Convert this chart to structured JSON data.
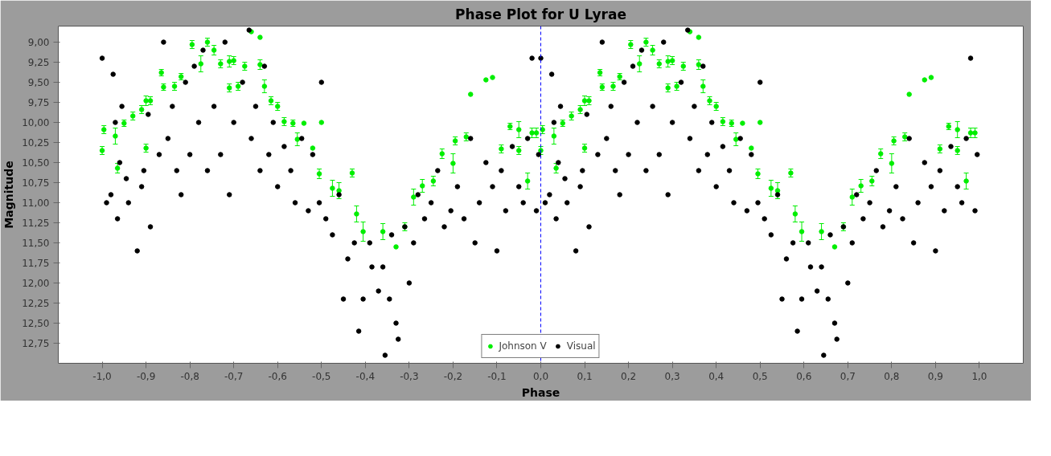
{
  "chart_data": {
    "type": "scatter",
    "title": "Phase Plot for U Lyrae",
    "xlabel": "Phase",
    "ylabel": "Magnitude",
    "xlim": [
      -1.1,
      1.1
    ],
    "ylim": [
      13.0,
      8.8
    ],
    "xticks": [
      {
        "value": -1.0,
        "label": "-1,0"
      },
      {
        "value": -0.9,
        "label": "-0,9"
      },
      {
        "value": -0.8,
        "label": "-0,8"
      },
      {
        "value": -0.7,
        "label": "-0,7"
      },
      {
        "value": -0.6,
        "label": "-0,6"
      },
      {
        "value": -0.5,
        "label": "-0,5"
      },
      {
        "value": -0.4,
        "label": "-0,4"
      },
      {
        "value": -0.3,
        "label": "-0,3"
      },
      {
        "value": -0.2,
        "label": "-0,2"
      },
      {
        "value": -0.1,
        "label": "-0,1"
      },
      {
        "value": 0.0,
        "label": "0,0"
      },
      {
        "value": 0.1,
        "label": "0,1"
      },
      {
        "value": 0.2,
        "label": "0,2"
      },
      {
        "value": 0.3,
        "label": "0,3"
      },
      {
        "value": 0.4,
        "label": "0,4"
      },
      {
        "value": 0.5,
        "label": "0,5"
      },
      {
        "value": 0.6,
        "label": "0,6"
      },
      {
        "value": 0.7,
        "label": "0,7"
      },
      {
        "value": 0.8,
        "label": "0,8"
      },
      {
        "value": 0.9,
        "label": "0,9"
      },
      {
        "value": 1.0,
        "label": "1,0"
      }
    ],
    "yticks": [
      {
        "value": 9.0,
        "label": "9,00"
      },
      {
        "value": 9.25,
        "label": "9,25"
      },
      {
        "value": 9.5,
        "label": "9,50"
      },
      {
        "value": 9.75,
        "label": "9,75"
      },
      {
        "value": 10.0,
        "label": "10,00"
      },
      {
        "value": 10.25,
        "label": "10,25"
      },
      {
        "value": 10.5,
        "label": "10,50"
      },
      {
        "value": 10.75,
        "label": "10,75"
      },
      {
        "value": 11.0,
        "label": "11,00"
      },
      {
        "value": 11.25,
        "label": "11,25"
      },
      {
        "value": 11.5,
        "label": "11,50"
      },
      {
        "value": 11.75,
        "label": "11,75"
      },
      {
        "value": 12.0,
        "label": "12,00"
      },
      {
        "value": 12.25,
        "label": "12,25"
      },
      {
        "value": 12.5,
        "label": "12,50"
      },
      {
        "value": 12.75,
        "label": "12,75"
      }
    ],
    "grid": false,
    "legend": "bottom",
    "marker": "circle",
    "ref_lines": [
      {
        "axis": "x",
        "value": 0.0,
        "color": "#0000ff",
        "line_style": "dashed"
      }
    ],
    "series": [
      {
        "name": "Johnson V",
        "color": "#00ee00",
        "x": [
          -0.996,
          -1.0,
          -0.97,
          -0.965,
          -0.95,
          -0.93,
          -0.91,
          -0.9,
          -0.9,
          -0.89,
          -0.865,
          -0.86,
          -0.835,
          -0.82,
          -0.795,
          -0.775,
          -0.76,
          -0.745,
          -0.73,
          -0.71,
          -0.71,
          -0.7,
          -0.69,
          -0.675,
          -0.66,
          -0.64,
          -0.64,
          -0.63,
          -0.615,
          -0.6,
          -0.585,
          -0.565,
          -0.555,
          -0.54,
          -0.52,
          -0.5,
          -0.505,
          -0.475,
          -0.46,
          -0.43,
          -0.42,
          -0.405,
          -0.36,
          -0.33,
          -0.31,
          -0.29,
          -0.27,
          -0.245,
          -0.225,
          -0.2,
          -0.195,
          -0.17,
          -0.16,
          -0.125,
          -0.11,
          -0.09,
          -0.07,
          -0.05,
          -0.05,
          -0.03,
          -0.02,
          -0.01,
          0.004,
          0.0,
          0.03,
          0.035,
          0.05,
          0.07,
          0.09,
          0.1,
          0.1,
          0.11,
          0.135,
          0.14,
          0.165,
          0.18,
          0.205,
          0.225,
          0.24,
          0.255,
          0.27,
          0.29,
          0.29,
          0.3,
          0.31,
          0.325,
          0.34,
          0.36,
          0.36,
          0.37,
          0.385,
          0.4,
          0.415,
          0.435,
          0.445,
          0.46,
          0.48,
          0.5,
          0.495,
          0.525,
          0.54,
          0.57,
          0.58,
          0.595,
          0.64,
          0.67,
          0.69,
          0.71,
          0.73,
          0.755,
          0.775,
          0.8,
          0.805,
          0.83,
          0.84,
          0.875,
          0.89,
          0.91,
          0.93,
          0.95,
          0.95,
          0.97,
          0.98,
          0.99
        ],
        "values": [
          10.09,
          10.35,
          10.17,
          10.57,
          10.01,
          9.92,
          9.84,
          9.73,
          10.32,
          9.73,
          9.38,
          9.56,
          9.55,
          9.43,
          9.03,
          9.27,
          9.0,
          9.1,
          9.27,
          9.24,
          9.57,
          9.23,
          9.55,
          9.3,
          8.87,
          8.94,
          9.28,
          9.55,
          9.73,
          9.8,
          9.99,
          10.01,
          10.21,
          10.01,
          10.32,
          10.0,
          10.64,
          10.82,
          10.85,
          10.63,
          11.14,
          11.36,
          11.36,
          11.55,
          11.3,
          10.93,
          10.79,
          10.73,
          10.39,
          10.51,
          10.23,
          10.18,
          9.65,
          9.47,
          9.44,
          10.33,
          10.05,
          10.35,
          10.09,
          10.73,
          10.13,
          10.13,
          10.09,
          10.35,
          10.17,
          10.57,
          10.01,
          9.92,
          9.84,
          9.73,
          10.32,
          9.73,
          9.38,
          9.56,
          9.55,
          9.43,
          9.03,
          9.27,
          9.0,
          9.1,
          9.27,
          9.24,
          9.57,
          9.23,
          9.55,
          9.3,
          8.87,
          8.94,
          9.28,
          9.55,
          9.73,
          9.8,
          9.99,
          10.01,
          10.21,
          10.01,
          10.32,
          10.0,
          10.64,
          10.82,
          10.85,
          10.63,
          11.14,
          11.36,
          11.36,
          11.55,
          11.3,
          10.93,
          10.79,
          10.73,
          10.39,
          10.51,
          10.23,
          10.18,
          9.65,
          9.47,
          9.44,
          10.33,
          10.05,
          10.35,
          10.09,
          10.73,
          10.13,
          10.13
        ],
        "errors": [
          0.05,
          0.05,
          0.1,
          0.06,
          0.04,
          0.05,
          0.05,
          0.06,
          0.05,
          0.05,
          0.04,
          0.04,
          0.05,
          0.04,
          0.05,
          0.1,
          0.05,
          0.06,
          0.05,
          0.07,
          0.05,
          0.05,
          0.05,
          0.05,
          null,
          null,
          0.06,
          0.08,
          0.05,
          0.05,
          0.05,
          0.04,
          0.08,
          null,
          null,
          null,
          0.06,
          0.1,
          0.1,
          0.05,
          0.1,
          0.12,
          0.1,
          null,
          0.05,
          0.1,
          0.08,
          0.06,
          0.06,
          0.12,
          0.05,
          0.05,
          null,
          null,
          null,
          0.05,
          0.04,
          0.05,
          0.1,
          0.1,
          0.06,
          0.06,
          0.05,
          0.05,
          0.1,
          0.06,
          0.04,
          0.05,
          0.05,
          0.06,
          0.05,
          0.05,
          0.04,
          0.04,
          0.05,
          0.04,
          0.05,
          0.1,
          0.05,
          0.06,
          0.05,
          0.07,
          0.05,
          0.05,
          0.05,
          0.05,
          null,
          null,
          0.06,
          0.08,
          0.05,
          0.05,
          0.05,
          0.04,
          0.08,
          null,
          null,
          null,
          0.06,
          0.1,
          0.1,
          0.05,
          0.1,
          0.12,
          0.1,
          null,
          0.05,
          0.1,
          0.08,
          0.06,
          0.06,
          0.12,
          0.05,
          0.05,
          null,
          null,
          null,
          0.05,
          0.04,
          0.05,
          0.1,
          0.1,
          0.06,
          0.06
        ]
      },
      {
        "name": "Visual",
        "color": "#000000",
        "x": [
          -1.0,
          -0.99,
          -0.98,
          -0.975,
          -0.97,
          -0.965,
          -0.96,
          -0.955,
          -0.945,
          -0.94,
          -0.92,
          -0.91,
          -0.905,
          -0.895,
          -0.89,
          -0.87,
          -0.86,
          -0.85,
          -0.84,
          -0.83,
          -0.82,
          -0.81,
          -0.8,
          -0.79,
          -0.78,
          -0.77,
          -0.76,
          -0.745,
          -0.73,
          -0.72,
          -0.71,
          -0.7,
          -0.68,
          -0.665,
          -0.66,
          -0.65,
          -0.64,
          -0.63,
          -0.62,
          -0.61,
          -0.6,
          -0.585,
          -0.57,
          -0.56,
          -0.545,
          -0.53,
          -0.52,
          -0.505,
          -0.5,
          -0.49,
          -0.475,
          -0.46,
          -0.45,
          -0.44,
          -0.425,
          -0.415,
          -0.405,
          -0.39,
          -0.385,
          -0.37,
          -0.36,
          -0.355,
          -0.345,
          -0.34,
          -0.33,
          -0.325,
          -0.31,
          -0.3,
          -0.29,
          -0.28,
          -0.265,
          -0.25,
          -0.235,
          -0.22,
          -0.205,
          -0.19,
          -0.175,
          -0.16,
          -0.15,
          -0.14,
          -0.125,
          -0.11,
          -0.1,
          -0.09,
          -0.08,
          -0.065,
          -0.05,
          -0.04,
          -0.03,
          -0.02,
          -0.01,
          -0.005,
          0.0,
          0.01,
          0.02,
          0.025,
          0.03,
          0.035,
          0.04,
          0.045,
          0.055,
          0.06,
          0.08,
          0.09,
          0.095,
          0.105,
          0.11,
          0.13,
          0.14,
          0.15,
          0.16,
          0.17,
          0.18,
          0.19,
          0.2,
          0.21,
          0.22,
          0.23,
          0.24,
          0.255,
          0.27,
          0.28,
          0.29,
          0.3,
          0.32,
          0.335,
          0.34,
          0.35,
          0.36,
          0.37,
          0.38,
          0.39,
          0.4,
          0.415,
          0.43,
          0.44,
          0.455,
          0.47,
          0.48,
          0.495,
          0.5,
          0.51,
          0.525,
          0.54,
          0.55,
          0.56,
          0.575,
          0.585,
          0.595,
          0.61,
          0.615,
          0.63,
          0.64,
          0.645,
          0.655,
          0.66,
          0.67,
          0.675,
          0.69,
          0.7,
          0.71,
          0.72,
          0.735,
          0.75,
          0.765,
          0.78,
          0.795,
          0.81,
          0.825,
          0.84,
          0.85,
          0.86,
          0.875,
          0.89,
          0.9,
          0.91,
          0.92,
          0.935,
          0.95,
          0.96,
          0.97,
          0.98,
          0.99,
          0.995
        ],
        "values": [
          9.2,
          11.0,
          10.9,
          9.4,
          10.0,
          11.2,
          10.5,
          9.8,
          10.7,
          11.0,
          11.6,
          10.8,
          10.6,
          9.9,
          11.3,
          10.4,
          9.0,
          10.2,
          9.8,
          10.6,
          10.9,
          9.5,
          10.4,
          9.3,
          10.0,
          9.1,
          10.6,
          9.8,
          10.4,
          9.0,
          10.9,
          10.0,
          9.5,
          8.85,
          10.2,
          9.8,
          10.6,
          9.3,
          10.4,
          10.0,
          10.8,
          10.3,
          10.6,
          11.0,
          10.2,
          11.1,
          10.4,
          11.0,
          9.5,
          11.2,
          11.4,
          10.9,
          12.2,
          11.7,
          11.5,
          12.6,
          12.2,
          11.5,
          11.8,
          12.1,
          11.8,
          12.9,
          12.2,
          11.4,
          12.5,
          12.7,
          11.3,
          12.0,
          11.5,
          10.9,
          11.2,
          11.0,
          10.6,
          11.3,
          11.1,
          10.8,
          11.2,
          10.2,
          11.5,
          11.0,
          10.5,
          10.8,
          11.6,
          10.6,
          11.1,
          10.3,
          10.8,
          11.0,
          10.2,
          9.2,
          11.1,
          10.4,
          9.2,
          11.0,
          10.9,
          9.4,
          10.0,
          11.2,
          10.5,
          9.8,
          10.7,
          11.0,
          11.6,
          10.8,
          10.6,
          9.9,
          11.3,
          10.4,
          9.0,
          10.2,
          9.8,
          10.6,
          10.9,
          9.5,
          10.4,
          9.3,
          10.0,
          9.1,
          10.6,
          9.8,
          10.4,
          9.0,
          10.9,
          10.0,
          9.5,
          8.85,
          10.2,
          9.8,
          10.6,
          9.3,
          10.4,
          10.0,
          10.8,
          10.3,
          10.6,
          11.0,
          10.2,
          11.1,
          10.4,
          11.0,
          9.5,
          11.2,
          11.4,
          10.9,
          12.2,
          11.7,
          11.5,
          12.6,
          12.2,
          11.5,
          11.8,
          12.1,
          11.8,
          12.9,
          12.2,
          11.4,
          12.5,
          12.7,
          11.3,
          12.0,
          11.5,
          10.9,
          11.2,
          11.0,
          10.6,
          11.3,
          11.1,
          10.8,
          11.2,
          10.2,
          11.5,
          11.0,
          10.5,
          10.8,
          11.6,
          10.6,
          11.1,
          10.3,
          10.8,
          11.0,
          10.2,
          9.2,
          11.1,
          10.4
        ]
      }
    ]
  }
}
